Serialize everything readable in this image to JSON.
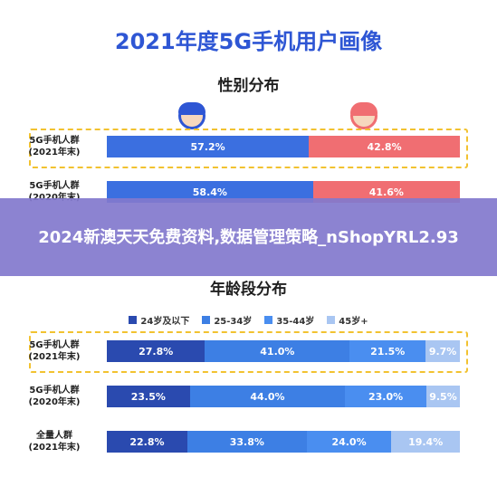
{
  "title": "2021年度5G手机用户画像",
  "banner_text": "2024新澳天天免费资料,数据管理策略_nShopYRL2.93",
  "chart_data": [
    {
      "type": "bar",
      "title": "性别分布",
      "orientation": "horizontal-stacked-100",
      "categories": [
        "5G手机人群\n(2021年末)",
        "5G手机人群\n(2020年末)"
      ],
      "series": [
        {
          "name": "",
          "values": [
            57.2,
            58.4
          ]
        },
        {
          "name": "",
          "values": [
            42.8,
            41.6
          ]
        }
      ],
      "value_labels": [
        [
          "57.2%",
          "42.8%"
        ],
        [
          "58.4%",
          "41.6%"
        ]
      ],
      "icons": [
        "male-face-icon",
        "female-face-icon"
      ],
      "colors": [
        "#3b6fe0",
        "#f06e72"
      ]
    },
    {
      "type": "bar",
      "title": "年龄段分布",
      "orientation": "horizontal-stacked-100",
      "categories": [
        "5G手机人群\n(2021年末)",
        "5G手机人群\n(2020年末)",
        "全量人群\n(2021年末)"
      ],
      "series": [
        {
          "name": "24岁及以下",
          "values": [
            27.8,
            23.5,
            22.8
          ]
        },
        {
          "name": "25-34岁",
          "values": [
            41.0,
            44.0,
            33.8
          ]
        },
        {
          "name": "35-44岁",
          "values": [
            21.5,
            23.0,
            24.0
          ]
        },
        {
          "name": "45岁+",
          "values": [
            9.7,
            9.5,
            19.4
          ]
        }
      ],
      "value_labels": [
        [
          "27.8%",
          "41.0%",
          "21.5%",
          "9.7%"
        ],
        [
          "23.5%",
          "44.0%",
          "23.0%",
          "9.5%"
        ],
        [
          "22.8%",
          "33.8%",
          "24.0%",
          "19.4%"
        ]
      ],
      "colors": [
        "#2a4aaf",
        "#3d7fe4",
        "#4a8ef0",
        "#a9c6f2"
      ],
      "legend_position": "top"
    }
  ]
}
